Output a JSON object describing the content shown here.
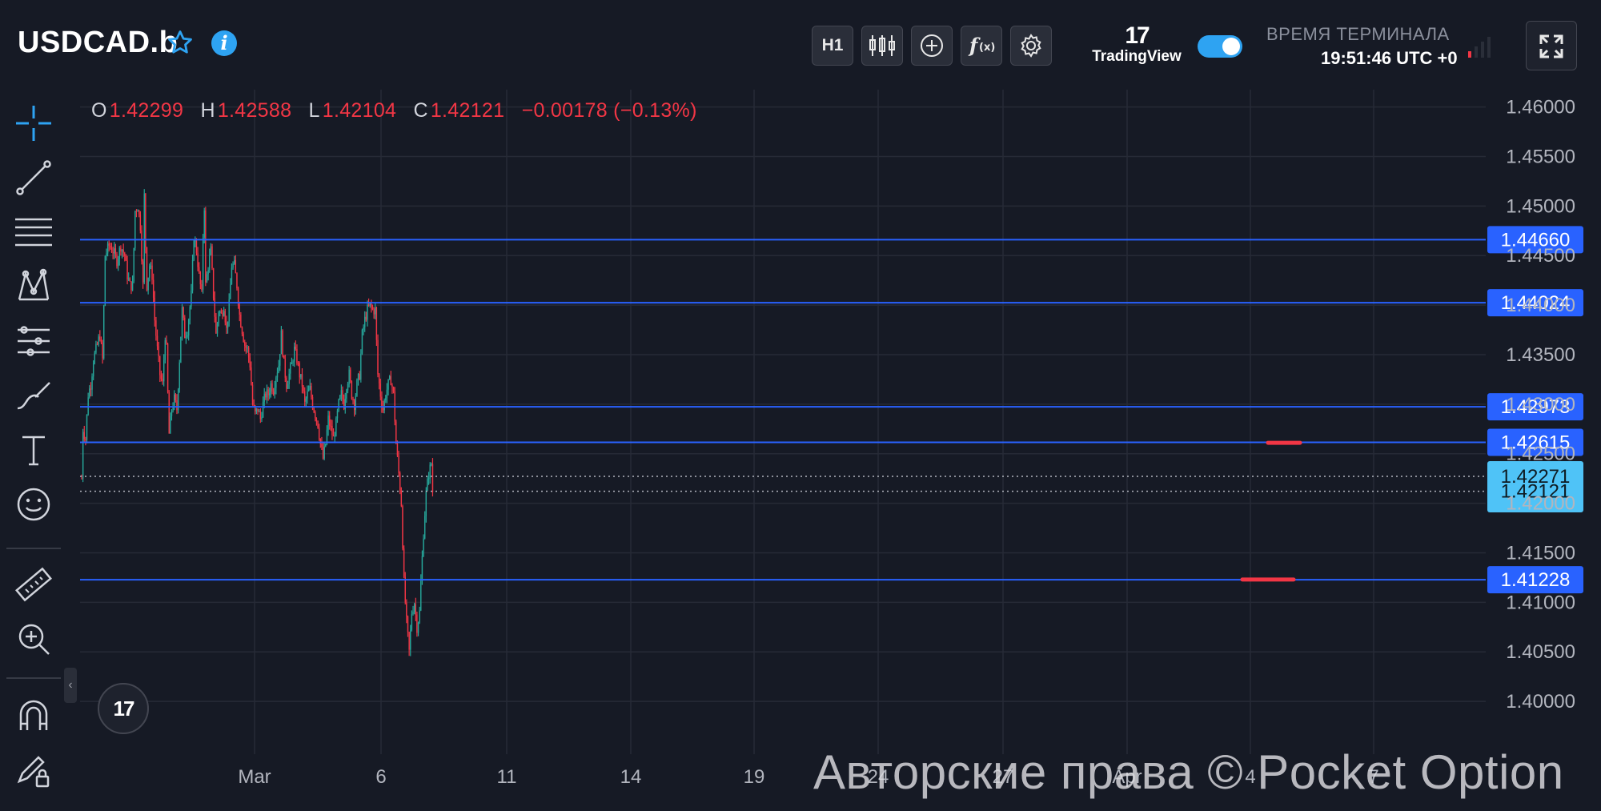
{
  "header": {
    "symbol": "USDCAD.b",
    "timeframe": "H1",
    "tradingview_word": "TradingView",
    "terminal_title": "ВРЕМЯ ТЕРМИНАЛА",
    "terminal_time": "19:51:46 UTC +0"
  },
  "icons": [
    "star-icon",
    "info-icon",
    "candles-icon",
    "plus-circle-icon",
    "fx-icon",
    "gear-icon",
    "fullscreen-icon",
    "crosshair-icon",
    "trendline-icon",
    "fib-lines-icon",
    "pattern-icon",
    "forecast-icon",
    "brush-icon",
    "text-icon",
    "emoji-icon",
    "ruler-icon",
    "zoom-icon",
    "magnet-icon",
    "lock-pencil-icon"
  ],
  "ohlc": {
    "o_label": "O",
    "o": "1.42299",
    "h_label": "H",
    "h": "1.42588",
    "l_label": "L",
    "l": "1.42104",
    "c_label": "C",
    "c": "1.42121",
    "change": "−0.00178 (−0.13%)"
  },
  "watermark": "Авторские права © Pocket Option",
  "colors": {
    "background": "#161a25",
    "grid": "#262a36",
    "up": "#26a69a",
    "down": "#f23645",
    "level_line": "#2962ff",
    "level_label": "#2962ff",
    "price_label": "#4fc3f7",
    "marker": "#f23645"
  },
  "chart_data": {
    "type": "candlestick",
    "symbol": "USDCAD.b",
    "interval": "H1",
    "y_ticks": [
      "1.46000",
      "1.45500",
      "1.45000",
      "1.44500",
      "1.44000",
      "1.43500",
      "1.43000",
      "1.42500",
      "1.42000",
      "1.41500",
      "1.41000",
      "1.40500",
      "1.40000"
    ],
    "ylim": [
      1.3975,
      1.4615
    ],
    "x_ticks": [
      "Mar",
      "6",
      "11",
      "14",
      "19",
      "24",
      "27",
      "Apr",
      "4",
      "7"
    ],
    "x_domain": [
      "Feb 24",
      "Apr 7"
    ],
    "horizontal_levels": [
      1.4466,
      1.44024,
      1.42973,
      1.42615,
      1.41228
    ],
    "level_labels": [
      "1.44660",
      "1.44024",
      "1.42973",
      "1.42615",
      "1.41228"
    ],
    "price_labels": [
      "1.42271",
      "1.42121"
    ],
    "dotted_levels": [
      1.42271,
      1.42121
    ],
    "marker_levels": [
      1.4261,
      1.4123
    ],
    "price_path": [
      [
        0,
        1.4225
      ],
      [
        1,
        1.4275
      ],
      [
        3,
        1.4265
      ],
      [
        5,
        1.431
      ],
      [
        7,
        1.432
      ],
      [
        9,
        1.4345
      ],
      [
        12,
        1.436
      ],
      [
        14,
        1.437
      ],
      [
        16,
        1.4345
      ],
      [
        18,
        1.445
      ],
      [
        21,
        1.446
      ],
      [
        24,
        1.4455
      ],
      [
        27,
        1.4445
      ],
      [
        30,
        1.446
      ],
      [
        33,
        1.445
      ],
      [
        35,
        1.443
      ],
      [
        37,
        1.442
      ],
      [
        39,
        1.442
      ],
      [
        41,
        1.4495
      ],
      [
        43,
        1.45
      ],
      [
        45,
        1.448
      ],
      [
        47,
        1.442
      ],
      [
        48,
        1.451
      ],
      [
        49,
        1.446
      ],
      [
        50,
        1.442
      ],
      [
        52,
        1.444
      ],
      [
        54,
        1.443
      ],
      [
        56,
        1.4385
      ],
      [
        58,
        1.4355
      ],
      [
        60,
        1.433
      ],
      [
        62,
        1.432
      ],
      [
        64,
        1.437
      ],
      [
        65,
        1.4355
      ],
      [
        66,
        1.431
      ],
      [
        67,
        1.427
      ],
      [
        69,
        1.4295
      ],
      [
        71,
        1.4305
      ],
      [
        73,
        1.4295
      ],
      [
        75,
        1.4345
      ],
      [
        77,
        1.4395
      ],
      [
        79,
        1.437
      ],
      [
        81,
        1.4375
      ],
      [
        84,
        1.441
      ],
      [
        86,
        1.447
      ],
      [
        88,
        1.4455
      ],
      [
        90,
        1.443
      ],
      [
        92,
        1.441
      ],
      [
        93,
        1.447
      ],
      [
        94,
        1.45
      ],
      [
        95,
        1.442
      ],
      [
        97,
        1.444
      ],
      [
        99,
        1.4455
      ],
      [
        101,
        1.441
      ],
      [
        103,
        1.437
      ],
      [
        105,
        1.4395
      ],
      [
        107,
        1.439
      ],
      [
        109,
        1.44
      ],
      [
        111,
        1.4375
      ],
      [
        113,
        1.44
      ],
      [
        115,
        1.444
      ],
      [
        117,
        1.444
      ],
      [
        119,
        1.442
      ],
      [
        121,
        1.439
      ],
      [
        123,
        1.4375
      ],
      [
        125,
        1.436
      ],
      [
        127,
        1.4355
      ],
      [
        129,
        1.434
      ],
      [
        131,
        1.43
      ],
      [
        133,
        1.429
      ],
      [
        135,
        1.4295
      ],
      [
        137,
        1.4285
      ],
      [
        139,
        1.43
      ],
      [
        141,
        1.431
      ],
      [
        143,
        1.431
      ],
      [
        145,
        1.432
      ],
      [
        147,
        1.4315
      ],
      [
        149,
        1.433
      ],
      [
        151,
        1.434
      ],
      [
        153,
        1.437
      ],
      [
        155,
        1.434
      ],
      [
        157,
        1.432
      ],
      [
        159,
        1.433
      ],
      [
        161,
        1.434
      ],
      [
        163,
        1.4355
      ],
      [
        165,
        1.4345
      ],
      [
        167,
        1.433
      ],
      [
        169,
        1.432
      ],
      [
        171,
        1.43
      ],
      [
        173,
        1.431
      ],
      [
        175,
        1.4315
      ],
      [
        177,
        1.43
      ],
      [
        179,
        1.429
      ],
      [
        181,
        1.428
      ],
      [
        183,
        1.426
      ],
      [
        185,
        1.4245
      ],
      [
        187,
        1.426
      ],
      [
        189,
        1.4285
      ],
      [
        191,
        1.4275
      ],
      [
        193,
        1.4265
      ],
      [
        195,
        1.428
      ],
      [
        197,
        1.43
      ],
      [
        199,
        1.431
      ],
      [
        201,
        1.43
      ],
      [
        203,
        1.432
      ],
      [
        205,
        1.433
      ],
      [
        207,
        1.431
      ],
      [
        209,
        1.43
      ],
      [
        211,
        1.432
      ],
      [
        213,
        1.433
      ],
      [
        215,
        1.437
      ],
      [
        217,
        1.4385
      ],
      [
        219,
        1.4395
      ],
      [
        221,
        1.44
      ],
      [
        223,
        1.4395
      ],
      [
        225,
        1.4395
      ],
      [
        227,
        1.433
      ],
      [
        229,
        1.431
      ],
      [
        231,
        1.4295
      ],
      [
        233,
        1.431
      ],
      [
        235,
        1.432
      ],
      [
        237,
        1.4325
      ],
      [
        239,
        1.431
      ],
      [
        241,
        1.426
      ],
      [
        243,
        1.423
      ],
      [
        245,
        1.42
      ],
      [
        247,
        1.412
      ],
      [
        249,
        1.408
      ],
      [
        251,
        1.405
      ],
      [
        253,
        1.409
      ],
      [
        255,
        1.41
      ],
      [
        257,
        1.4075
      ],
      [
        259,
        1.409
      ],
      [
        260,
        1.412
      ],
      [
        262,
        1.417
      ],
      [
        264,
        1.421
      ],
      [
        266,
        1.423
      ],
      [
        268,
        1.424
      ],
      [
        269,
        1.4212
      ]
    ]
  }
}
